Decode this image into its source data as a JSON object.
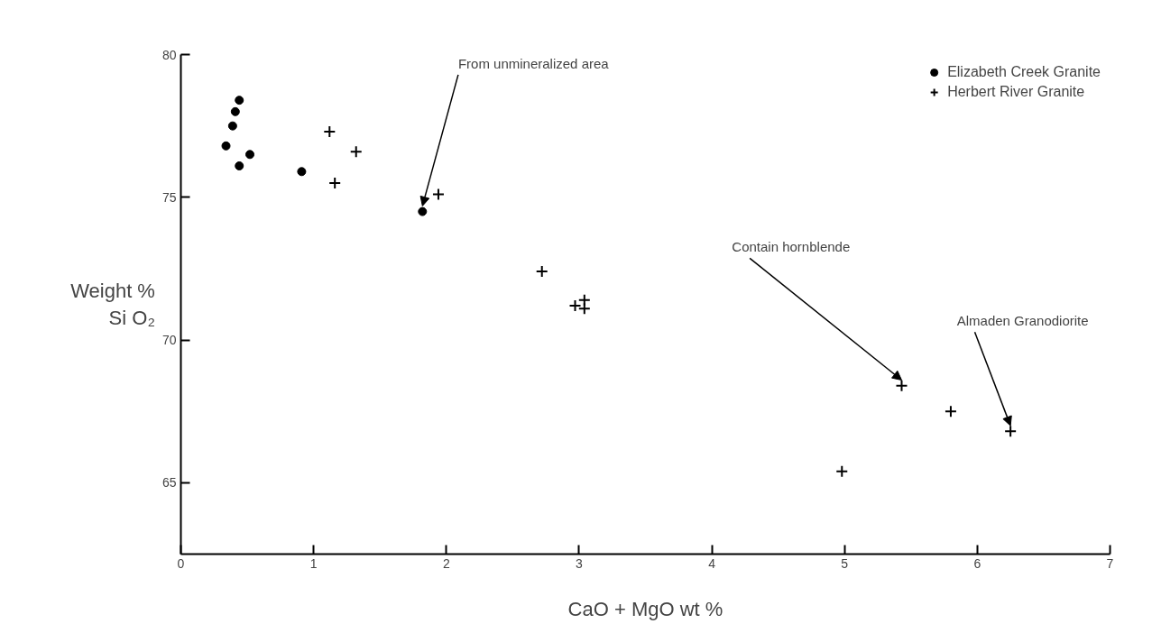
{
  "chart_data": {
    "type": "scatter",
    "xlabel": "CaO + MgO wt %",
    "ylabel": "Weight %\nSi O₂",
    "xlim": [
      0,
      7
    ],
    "ylim": [
      62.5,
      80
    ],
    "xticks": [
      0,
      1,
      2,
      3,
      4,
      5,
      6,
      7
    ],
    "yticks": [
      65,
      70,
      75,
      80
    ],
    "grid": false,
    "legend": "top right",
    "series": [
      {
        "name": "Elizabeth Creek Granite",
        "color": "#000000",
        "marker": "circle",
        "x": [
          0.44,
          0.41,
          0.39,
          0.34,
          0.52,
          0.44,
          0.91,
          1.82
        ],
        "values": [
          78.4,
          78.0,
          77.5,
          76.8,
          76.5,
          76.1,
          75.9,
          74.5
        ]
      },
      {
        "name": "Herbert River Granite",
        "color": "#000000",
        "marker": "cross",
        "x": [
          1.12,
          1.32,
          1.16,
          1.94,
          2.72,
          2.97,
          3.04,
          3.04,
          5.43,
          5.8,
          6.25,
          4.98
        ],
        "values": [
          77.3,
          76.6,
          75.5,
          75.1,
          72.4,
          71.2,
          71.4,
          71.1,
          68.4,
          67.5,
          66.8,
          65.4
        ]
      }
    ],
    "annotations": [
      {
        "text": "From unmineralized area",
        "x": 1.82,
        "y": 74.5
      },
      {
        "text": "Contain hornblende",
        "x": 5.43,
        "y": 68.4
      },
      {
        "text": "Almaden Granodiorite",
        "x": 6.25,
        "y": 66.8
      }
    ]
  }
}
